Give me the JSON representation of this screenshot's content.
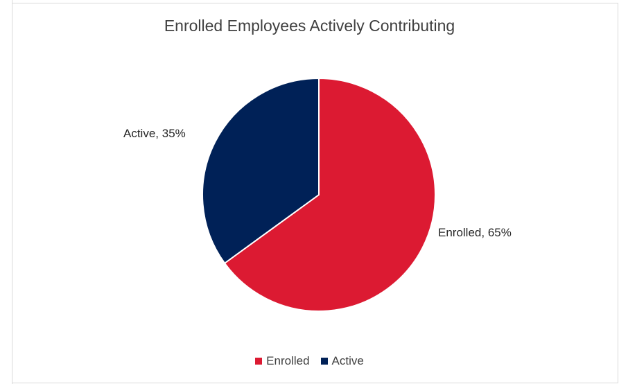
{
  "chart_data": {
    "type": "pie",
    "title": "Enrolled Employees Actively Contributing",
    "categories": [
      "Enrolled",
      "Active"
    ],
    "values": [
      65,
      35
    ],
    "colors": [
      "#dc1a32",
      "#002157"
    ],
    "data_labels": [
      "Enrolled, 65%",
      "Active, 35%"
    ],
    "legend": {
      "position": "bottom",
      "entries": [
        "Enrolled",
        "Active"
      ]
    }
  }
}
